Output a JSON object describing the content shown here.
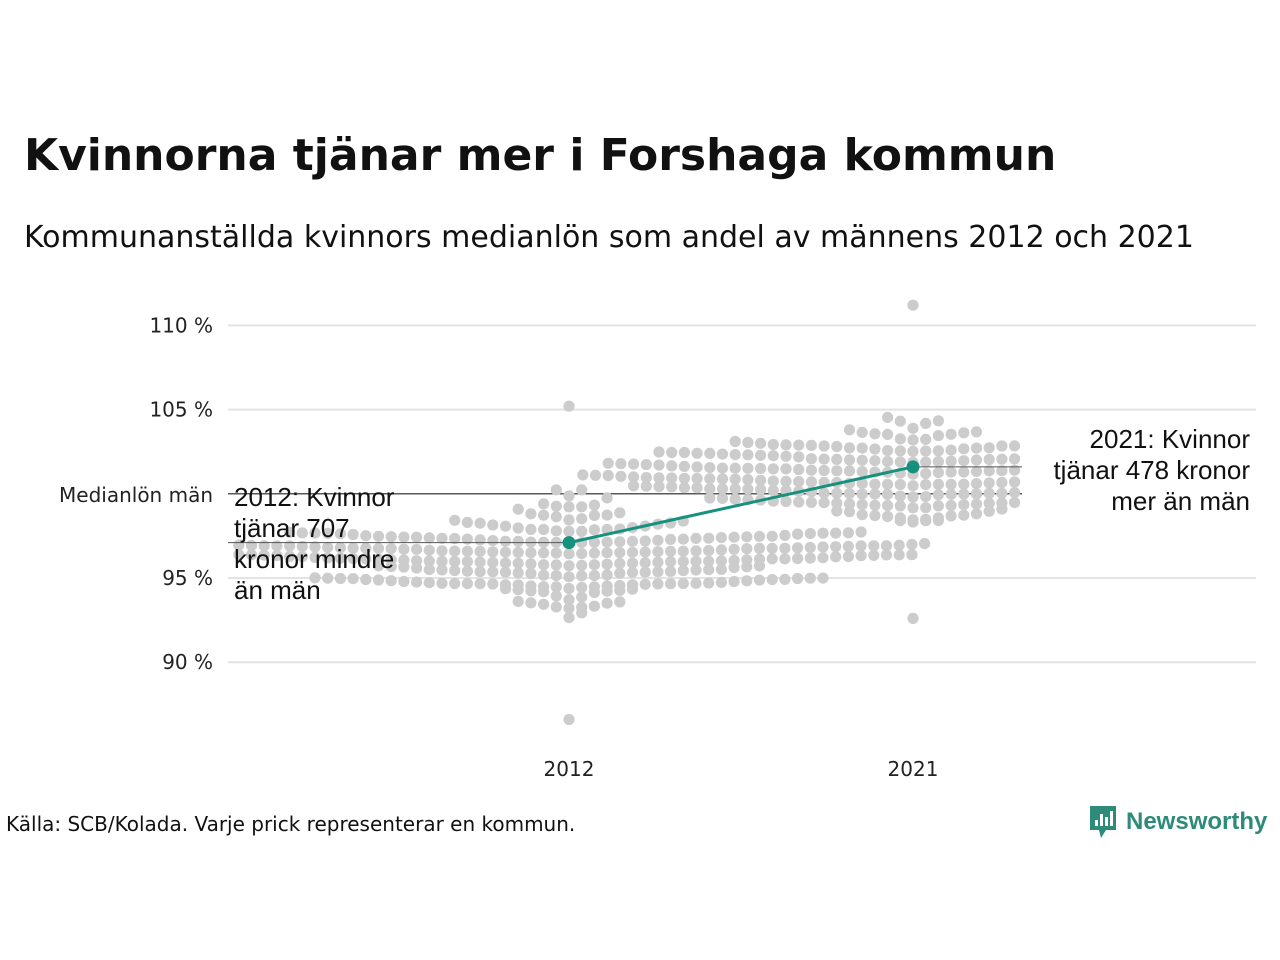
{
  "header": {
    "title": "Kvinnorna tjänar mer i Forshaga kommun",
    "subtitle": "Kommunanställda kvinnors medianlön som andel av männens 2012 och 2021"
  },
  "footer": {
    "source": "Källa: SCB/Kolada. Varje prick representerar en kommun.",
    "brand": "Newsworthy"
  },
  "colors": {
    "highlight": "#17917f",
    "dots": "#cccccc",
    "grid": "#e3e3e3",
    "reference": "#222222",
    "brand": "#2e8b7a"
  },
  "chart_data": {
    "type": "scatter",
    "subtype": "beeswarm",
    "categories": [
      "2012",
      "2021"
    ],
    "yticks": [
      90,
      95,
      105,
      110
    ],
    "ytick_labels": [
      "90 %",
      "95 %",
      "105 %",
      "110 %"
    ],
    "ylim": [
      86,
      111.5
    ],
    "grid": true,
    "reference_line": {
      "value": 100,
      "label": "Medianlön män"
    },
    "highlight": {
      "values": [
        97.1,
        101.6
      ],
      "annotations": [
        [
          "2012: Kvinnor",
          "tjänar 707",
          "kronor mindre",
          "än män"
        ],
        [
          "2021: Kvinnor",
          "tjänar 478 kronor",
          "mer än män"
        ]
      ]
    },
    "distribution_summary": [
      {
        "category": "2012",
        "count": 290,
        "min": 86.6,
        "max": 105.2,
        "center": 96.3,
        "spread": 2.8
      },
      {
        "category": "2021",
        "count": 290,
        "min": 92.6,
        "max": 111.2,
        "center": 101.0,
        "spread": 2.7
      }
    ]
  }
}
